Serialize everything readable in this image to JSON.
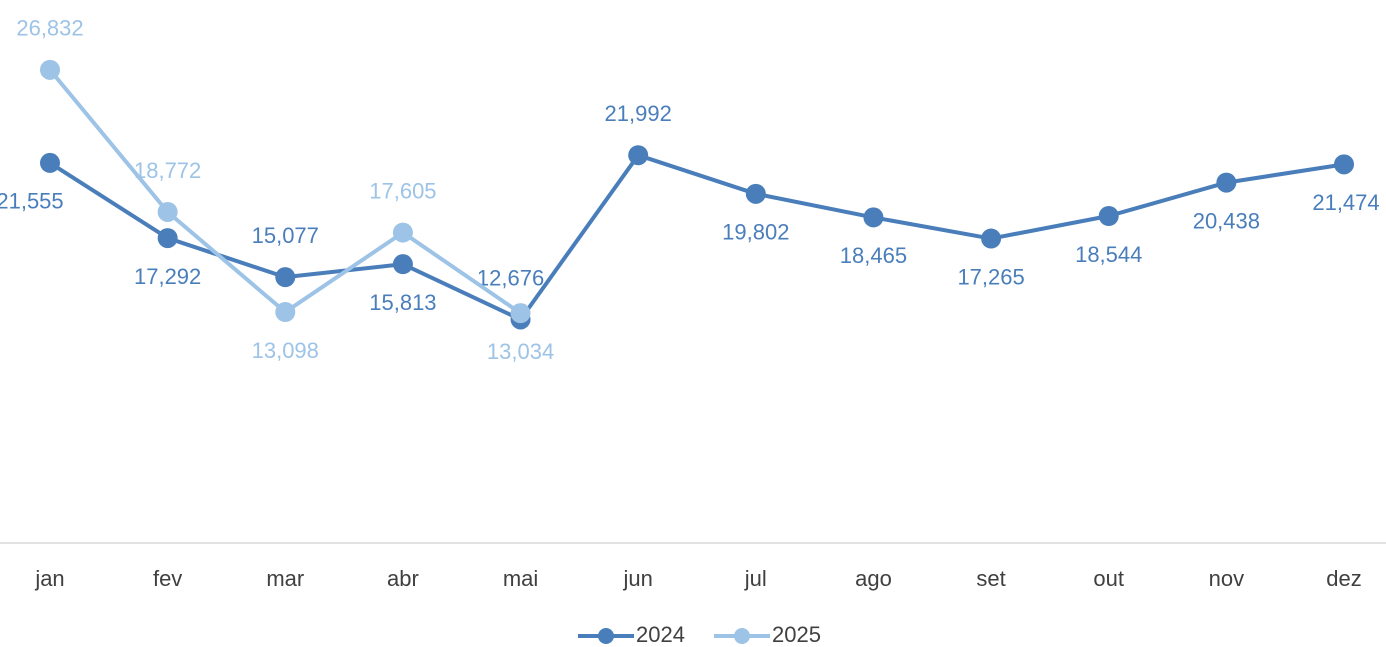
{
  "chart_data": {
    "type": "line",
    "categories": [
      "jan",
      "fev",
      "mar",
      "abr",
      "mai",
      "jun",
      "jul",
      "ago",
      "set",
      "out",
      "nov",
      "dez"
    ],
    "series": [
      {
        "name": "2024",
        "color": "#4a7ebb",
        "values": [
          21555,
          17292,
          15077,
          15813,
          12676,
          21992,
          19802,
          18465,
          17265,
          18544,
          20438,
          21474
        ],
        "value_labels": [
          "21,555",
          "17,292",
          "15,077",
          "15,813",
          "12,676",
          "21,992",
          "19,802",
          "18,465",
          "17,265",
          "18,544",
          "20,438",
          "21,474"
        ]
      },
      {
        "name": "2025",
        "color": "#9dc3e6",
        "values": [
          26832,
          18772,
          13098,
          17605,
          13034,
          null,
          null,
          null,
          null,
          null,
          null,
          null
        ],
        "value_labels": [
          "26,832",
          "18,772",
          "13,098",
          "17,605",
          "13,034",
          null,
          null,
          null,
          null,
          null,
          null,
          null
        ]
      }
    ],
    "ylim": [
      0,
      30000
    ],
    "legend": "bottom"
  }
}
